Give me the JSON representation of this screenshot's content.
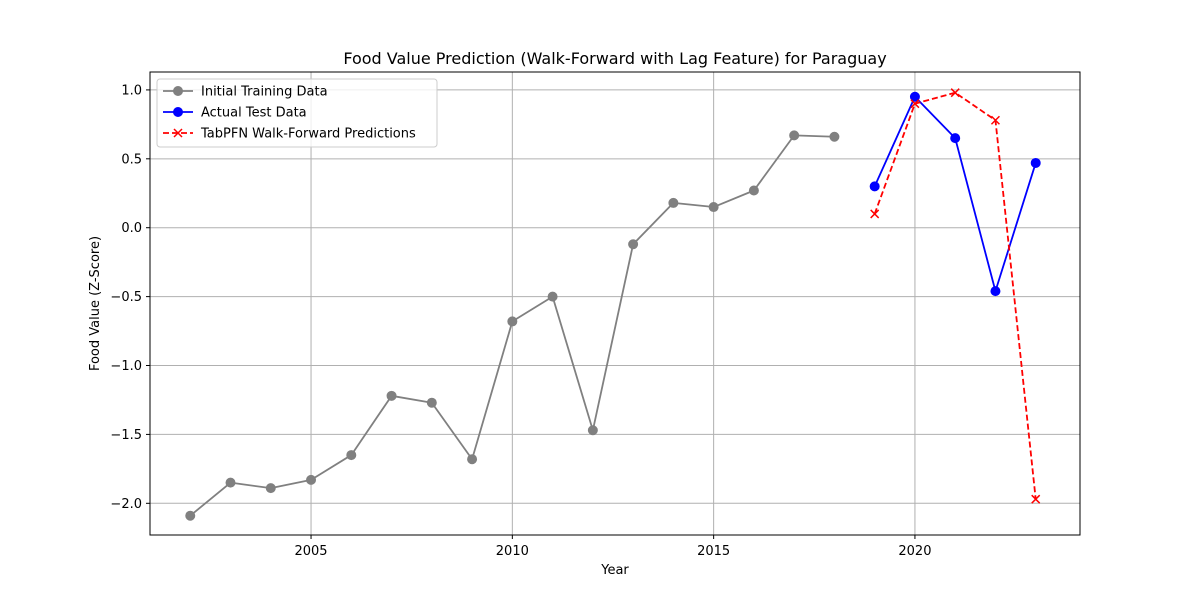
{
  "chart_data": {
    "type": "line",
    "title": "Food Value Prediction (Walk-Forward with Lag Feature) for Paraguay",
    "xlabel": "Year",
    "ylabel": "Food Value (Z-Score)",
    "xlim": [
      2001.0,
      2024.1
    ],
    "ylim": [
      -2.23,
      1.13
    ],
    "xticks": [
      2005,
      2010,
      2015,
      2020
    ],
    "xtick_labels": [
      "2005",
      "2010",
      "2015",
      "2020"
    ],
    "yticks": [
      1.0,
      0.5,
      0.0,
      -0.5,
      -1.0,
      -1.5,
      -2.0
    ],
    "ytick_labels": [
      "1.0",
      "0.5",
      "0.0",
      "−0.5",
      "−1.0",
      "−1.5",
      "−2.0"
    ],
    "grid": true,
    "legend_position": "top-left",
    "series": [
      {
        "name": "Initial Training Data",
        "color": "#808080",
        "marker": "circle",
        "line_style": "solid",
        "x": [
          2002,
          2003,
          2004,
          2005,
          2006,
          2007,
          2008,
          2009,
          2010,
          2011,
          2012,
          2013,
          2014,
          2015,
          2016,
          2017,
          2018
        ],
        "y": [
          -2.09,
          -1.85,
          -1.89,
          -1.83,
          -1.65,
          -1.22,
          -1.27,
          -1.68,
          -0.68,
          -0.5,
          -1.47,
          -0.12,
          0.18,
          0.15,
          0.27,
          0.67,
          0.66
        ]
      },
      {
        "name": "Actual Test Data",
        "color": "#0000ff",
        "marker": "circle",
        "line_style": "solid",
        "x": [
          2019,
          2020,
          2021,
          2022,
          2023
        ],
        "y": [
          0.3,
          0.95,
          0.65,
          -0.46,
          0.47
        ]
      },
      {
        "name": "TabPFN Walk-Forward Predictions",
        "color": "#ff0000",
        "marker": "x",
        "line_style": "dashed",
        "x": [
          2019,
          2020,
          2021,
          2022,
          2023
        ],
        "y": [
          0.1,
          0.9,
          0.98,
          0.78,
          -1.97
        ]
      }
    ]
  }
}
